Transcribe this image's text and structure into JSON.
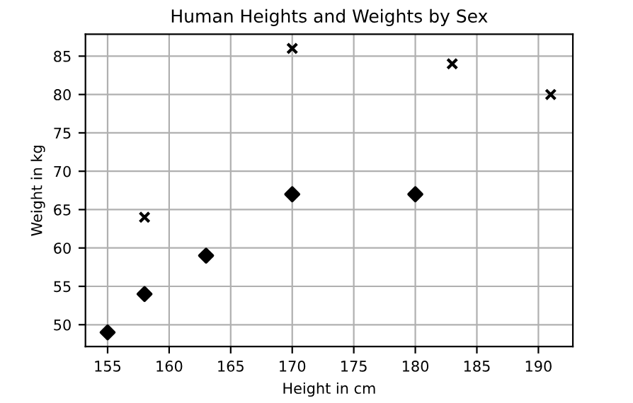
{
  "chart_data": {
    "type": "scatter",
    "title": "Human Heights and Weights by Sex",
    "xlabel": "Height in cm",
    "ylabel": "Weight in kg",
    "series": [
      {
        "color": "#000000",
        "marker": "cross",
        "x": [
          158,
          170,
          183,
          191
        ],
        "values": [
          64,
          86,
          84,
          80
        ]
      },
      {
        "color": "#000000",
        "marker": "diamond",
        "x": [
          155,
          158,
          163,
          170,
          180
        ],
        "values": [
          49,
          54,
          59,
          67,
          67
        ]
      }
    ],
    "xlim": [
      153.2,
      192.8
    ],
    "ylim": [
      47.15,
      87.85
    ],
    "xticks": [
      155,
      160,
      165,
      170,
      175,
      180,
      185,
      190
    ],
    "yticks": [
      50,
      55,
      60,
      65,
      70,
      75,
      80,
      85
    ],
    "grid": true,
    "legend": false
  }
}
